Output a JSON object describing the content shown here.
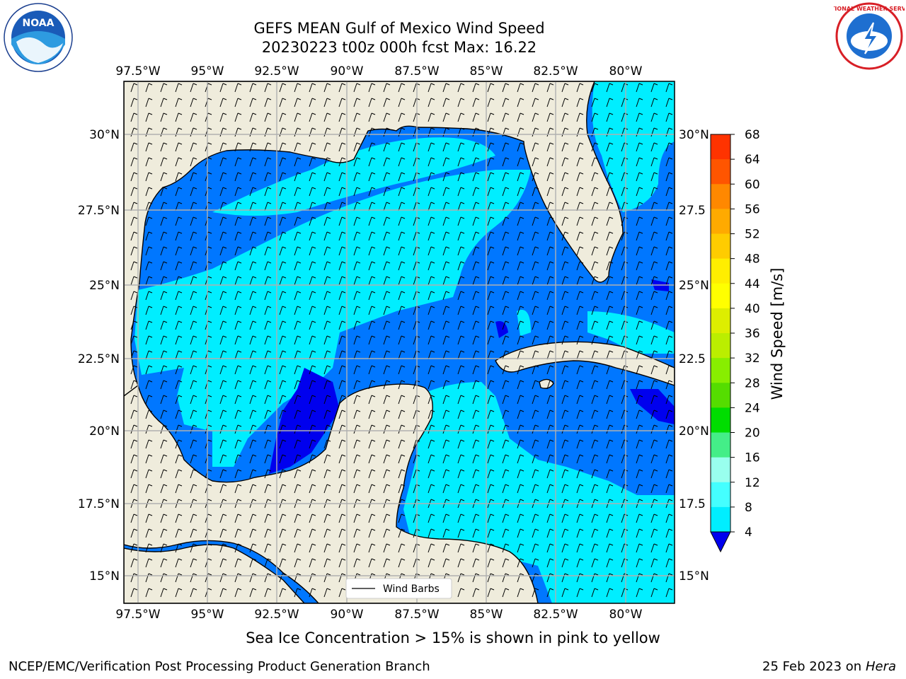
{
  "title_line1": "GEFS MEAN Gulf of Mexico Wind Speed",
  "title_line2": "20230223 t00z 000h fcst   Max: 16.22",
  "lon_ticks": [
    "97.5°W",
    "95°W",
    "92.5°W",
    "90°W",
    "87.5°W",
    "85°W",
    "82.5°W",
    "80°W"
  ],
  "lat_ticks_left": [
    "30°N",
    "27.5°N",
    "25°N",
    "22.5°N",
    "20°N",
    "17.5°N",
    "15°N"
  ],
  "lat_ticks_right": [
    "30°N",
    "27.5",
    "25°N",
    "22.5",
    "20°N",
    "17.5",
    "15°N"
  ],
  "legend_label": "Wind Barbs",
  "colorbar": {
    "label": "Wind Speed [m/s]",
    "ticks": [
      "68",
      "64",
      "60",
      "56",
      "52",
      "48",
      "44",
      "40",
      "36",
      "32",
      "28",
      "24",
      "20",
      "16",
      "12",
      "8",
      "4"
    ],
    "colors": [
      "#ff0000",
      "#ff3300",
      "#ff5500",
      "#ff8800",
      "#ffaa00",
      "#ffcc00",
      "#ffee00",
      "#ffff00",
      "#ddee00",
      "#bbee00",
      "#88ee00",
      "#55dd00",
      "#00dd00",
      "#44ee88",
      "#99ffee",
      "#44ffff",
      "#00eeff",
      "#0077ff",
      "#0000ee"
    ]
  },
  "colors": {
    "land": "#efecdc",
    "water_light": "#00eeff",
    "water_mid": "#0077ff",
    "water_dark": "#0000ee",
    "grid": "#b0b0b0"
  },
  "caption": "Sea Ice Concentration > 15% is shown in pink to yellow",
  "footer_left": "NCEP/EMC/Verification Post Processing Product Generation Branch",
  "footer_right_text": "25 Feb 2023 on",
  "footer_right_host": "Hera",
  "logos": {
    "noaa_text": "NOAA",
    "nws_text": "NATIONAL WEATHER SERVICE"
  }
}
